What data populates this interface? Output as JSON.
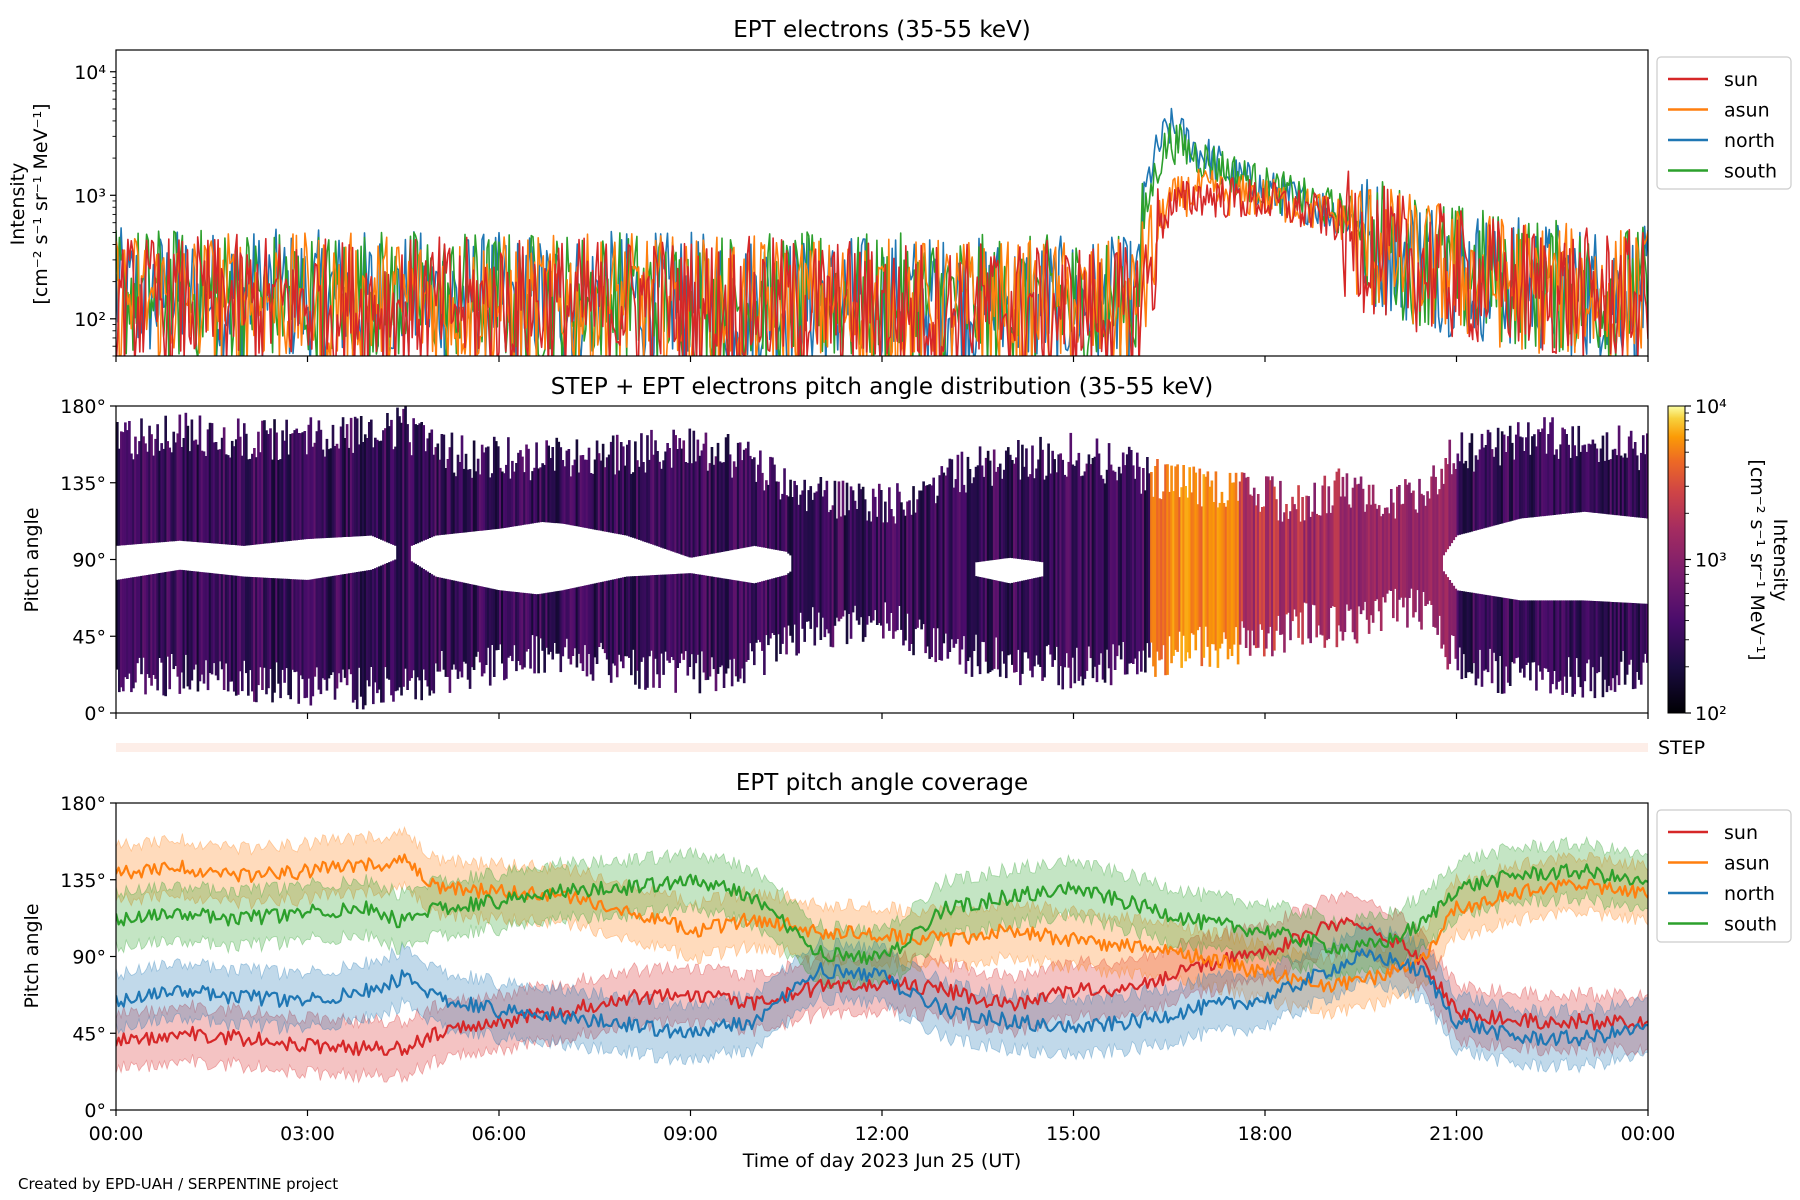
{
  "footer": {
    "credit": "Created by EPD-UAH / SERPENTINE project"
  },
  "colors": {
    "sun": "#d62728",
    "asun": "#ff7f0e",
    "north": "#1f77b4",
    "south": "#2ca02c",
    "step_band": "#fdeee8"
  },
  "chart_data": [
    {
      "id": "intensity",
      "type": "line",
      "title": "EPT electrons (35-55 keV)",
      "ylabel": [
        "Intensity",
        "[cm⁻² s⁻¹ sr⁻¹ MeV⁻¹]"
      ],
      "yscale": "log",
      "ylim": [
        50,
        15000
      ],
      "yticks": [
        100,
        1000,
        10000
      ],
      "ytick_labels": [
        "10²",
        "10³",
        "10⁴"
      ],
      "xlim": [
        "2023-06-25 00:00",
        "2023-06-26 00:00"
      ],
      "x_unit": "hours since 2023-06-25 00:00",
      "legend": {
        "placement": "outside-right-top",
        "entries": [
          "sun",
          "asun",
          "north",
          "south"
        ]
      },
      "series": [
        {
          "name": "sun",
          "color": "#d62728",
          "x": [
            0,
            1,
            2,
            3,
            4,
            5,
            6,
            7,
            8,
            9,
            10,
            11,
            12,
            13,
            14,
            15,
            16,
            16.2,
            16.5,
            17,
            17.5,
            18,
            19,
            20,
            21,
            22,
            23,
            24
          ],
          "y": [
            180,
            170,
            175,
            170,
            165,
            170,
            165,
            170,
            175,
            170,
            170,
            165,
            165,
            160,
            160,
            155,
            150,
            300,
            800,
            1000,
            950,
            900,
            650,
            400,
            280,
            230,
            200,
            190
          ]
        },
        {
          "name": "asun",
          "color": "#ff7f0e",
          "x": [
            0,
            1,
            2,
            3,
            4,
            5,
            6,
            7,
            8,
            9,
            10,
            11,
            12,
            13,
            14,
            15,
            16,
            16.2,
            16.5,
            17,
            17.5,
            18,
            19,
            20,
            21,
            22,
            23,
            24
          ],
          "y": [
            190,
            185,
            190,
            180,
            185,
            180,
            175,
            175,
            180,
            175,
            170,
            170,
            165,
            165,
            160,
            160,
            160,
            350,
            900,
            1100,
            1000,
            950,
            700,
            420,
            300,
            240,
            210,
            200
          ]
        },
        {
          "name": "north",
          "color": "#1f77b4",
          "x": [
            0,
            1,
            2,
            3,
            4,
            5,
            6,
            7,
            8,
            9,
            10,
            11,
            12,
            13,
            14,
            15,
            16,
            16.2,
            16.5,
            17,
            17.5,
            18,
            19,
            20,
            21,
            22,
            23,
            24
          ],
          "y": [
            200,
            195,
            200,
            190,
            195,
            190,
            185,
            185,
            190,
            185,
            180,
            180,
            175,
            175,
            170,
            170,
            170,
            1500,
            3500,
            2200,
            1400,
            1100,
            750,
            450,
            310,
            250,
            215,
            205
          ]
        },
        {
          "name": "south",
          "color": "#2ca02c",
          "x": [
            0,
            1,
            2,
            3,
            4,
            5,
            6,
            7,
            8,
            9,
            10,
            11,
            12,
            13,
            14,
            15,
            16,
            16.2,
            16.5,
            17,
            17.5,
            18,
            19,
            20,
            21,
            22,
            23,
            24
          ],
          "y": [
            210,
            200,
            205,
            195,
            200,
            195,
            190,
            190,
            195,
            190,
            185,
            185,
            180,
            180,
            175,
            175,
            175,
            1000,
            2800,
            2000,
            1500,
            1150,
            780,
            460,
            320,
            255,
            220,
            210
          ]
        }
      ]
    },
    {
      "id": "pad",
      "type": "heatmap",
      "title": "STEP + EPT electrons pitch angle distribution (35-55 keV)",
      "ylabel": "Pitch angle",
      "ylim": [
        0,
        180
      ],
      "yticks": [
        0,
        45,
        90,
        135,
        180
      ],
      "ytick_labels": [
        "0°",
        "45°",
        "90°",
        "135°",
        "180°"
      ],
      "colorbar": {
        "label": [
          "Intensity",
          "[cm⁻² s⁻¹ sr⁻¹ MeV⁻¹]"
        ],
        "scale": "log",
        "range": [
          100,
          10000
        ],
        "tick_labels": [
          "10²",
          "10³",
          "10⁴"
        ],
        "colormap": "inferno"
      },
      "step_label": "STEP"
    },
    {
      "id": "coverage",
      "type": "line",
      "title": "EPT pitch angle coverage",
      "xlabel": "Time of day 2023 Jun 25 (UT)",
      "ylabel": "Pitch angle",
      "ylim": [
        0,
        180
      ],
      "yticks": [
        0,
        45,
        90,
        135,
        180
      ],
      "ytick_labels": [
        "0°",
        "45°",
        "90°",
        "135°",
        "180°"
      ],
      "xtick_labels": [
        "00:00",
        "03:00",
        "06:00",
        "09:00",
        "12:00",
        "15:00",
        "18:00",
        "21:00",
        "00:00"
      ],
      "legend": {
        "placement": "outside-right-top",
        "entries": [
          "sun",
          "asun",
          "north",
          "south"
        ]
      },
      "band_halfwidth_deg": 16,
      "series": [
        {
          "name": "sun",
          "color": "#d62728",
          "x": [
            0,
            1,
            2,
            3,
            4,
            4.5,
            5,
            6,
            7,
            8,
            9,
            10,
            11,
            12,
            13,
            14,
            15,
            16,
            17,
            18,
            19,
            19.5,
            20,
            20.5,
            21,
            22,
            23,
            24
          ],
          "y": [
            40,
            45,
            42,
            38,
            36,
            36,
            45,
            52,
            58,
            66,
            68,
            62,
            72,
            75,
            70,
            62,
            70,
            72,
            85,
            92,
            108,
            110,
            100,
            85,
            58,
            52,
            52,
            50
          ]
        },
        {
          "name": "asun",
          "color": "#ff7f0e",
          "x": [
            0,
            1,
            2,
            3,
            4,
            4.5,
            5,
            6,
            7,
            8,
            9,
            10,
            11,
            12,
            13,
            14,
            15,
            16,
            17,
            18,
            19,
            19.5,
            20,
            20.5,
            21,
            22,
            23,
            24
          ],
          "y": [
            138,
            142,
            138,
            140,
            144,
            146,
            130,
            128,
            125,
            118,
            105,
            112,
            105,
            102,
            100,
            105,
            100,
            95,
            90,
            80,
            72,
            75,
            82,
            90,
            118,
            128,
            132,
            128
          ]
        },
        {
          "name": "north",
          "color": "#1f77b4",
          "x": [
            0,
            1,
            2,
            3,
            4,
            4.5,
            5,
            6,
            7,
            8,
            9,
            10,
            11,
            12,
            13,
            14,
            15,
            16,
            17,
            18,
            19,
            19.5,
            20,
            20.5,
            21,
            22,
            23,
            24
          ],
          "y": [
            64,
            70,
            66,
            64,
            70,
            78,
            66,
            58,
            54,
            50,
            45,
            52,
            82,
            78,
            58,
            52,
            48,
            52,
            60,
            65,
            82,
            90,
            88,
            80,
            52,
            42,
            42,
            48
          ]
        },
        {
          "name": "south",
          "color": "#2ca02c",
          "x": [
            0,
            1,
            2,
            3,
            4,
            4.5,
            5,
            6,
            7,
            8,
            9,
            10,
            11,
            12,
            13,
            14,
            15,
            16,
            17,
            18,
            19,
            19.5,
            20,
            20.5,
            21,
            22,
            23,
            24
          ],
          "y": [
            112,
            115,
            112,
            116,
            118,
            110,
            118,
            122,
            128,
            130,
            135,
            125,
            92,
            88,
            118,
            125,
            130,
            120,
            110,
            105,
            96,
            95,
            100,
            110,
            130,
            138,
            140,
            132
          ]
        }
      ]
    }
  ]
}
